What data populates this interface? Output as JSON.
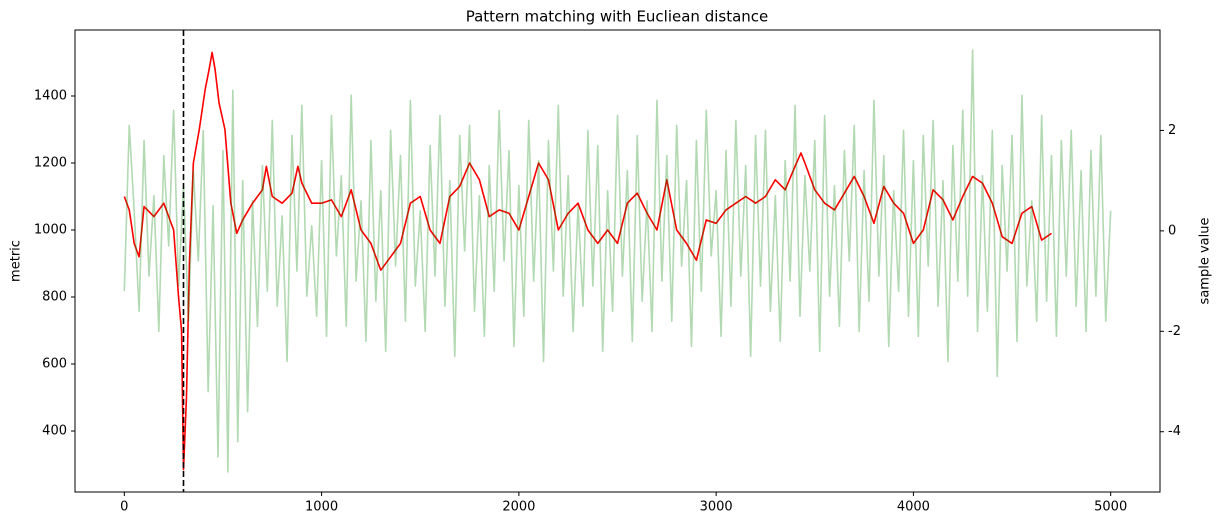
{
  "chart_data": {
    "type": "line",
    "title": "Pattern matching with Eucliean distance",
    "ylabel": "metric",
    "y2label": "sample value",
    "xlim": [
      -250,
      5250
    ],
    "xticks": [
      0,
      1000,
      2000,
      3000,
      4000,
      5000
    ],
    "ylim": [
      218,
      1597
    ],
    "yticks": [
      400,
      600,
      800,
      1000,
      1200,
      1400
    ],
    "y2lim": [
      -5.2,
      4.0
    ],
    "y2ticks": [
      -4,
      -2,
      0,
      2
    ],
    "vlines": [
      300
    ],
    "series": [
      {
        "name": "metric",
        "color": "red",
        "opacity": 1,
        "x": [
          0,
          25,
          50,
          75,
          100,
          150,
          200,
          250,
          275,
          290,
          300,
          315,
          330,
          350,
          380,
          410,
          430,
          445,
          460,
          480,
          510,
          540,
          570,
          600,
          650,
          700,
          720,
          750,
          800,
          850,
          880,
          900,
          950,
          1000,
          1050,
          1100,
          1150,
          1200,
          1250,
          1300,
          1350,
          1400,
          1450,
          1500,
          1550,
          1600,
          1650,
          1700,
          1750,
          1800,
          1850,
          1900,
          1950,
          2000,
          2050,
          2100,
          2150,
          2200,
          2250,
          2300,
          2350,
          2400,
          2450,
          2500,
          2550,
          2600,
          2650,
          2700,
          2750,
          2800,
          2850,
          2900,
          2950,
          3000,
          3050,
          3100,
          3150,
          3200,
          3250,
          3300,
          3350,
          3400,
          3430,
          3450,
          3500,
          3550,
          3600,
          3650,
          3700,
          3750,
          3800,
          3850,
          3900,
          3950,
          4000,
          4050,
          4100,
          4150,
          4200,
          4250,
          4300,
          4350,
          4400,
          4450,
          4500,
          4550,
          4600,
          4650,
          4700
        ],
        "values": [
          1100,
          1060,
          960,
          920,
          1070,
          1040,
          1080,
          1000,
          800,
          700,
          285,
          500,
          900,
          1200,
          1300,
          1420,
          1480,
          1530,
          1480,
          1380,
          1300,
          1080,
          990,
          1030,
          1080,
          1120,
          1190,
          1100,
          1080,
          1110,
          1190,
          1140,
          1080,
          1080,
          1090,
          1040,
          1120,
          1000,
          960,
          880,
          920,
          960,
          1080,
          1100,
          1000,
          960,
          1100,
          1130,
          1200,
          1150,
          1040,
          1060,
          1050,
          1000,
          1100,
          1200,
          1150,
          1000,
          1050,
          1080,
          1000,
          960,
          1000,
          960,
          1080,
          1110,
          1050,
          1000,
          1150,
          1000,
          960,
          910,
          1030,
          1020,
          1060,
          1080,
          1100,
          1080,
          1100,
          1150,
          1120,
          1190,
          1230,
          1200,
          1120,
          1080,
          1060,
          1110,
          1160,
          1100,
          1020,
          1130,
          1080,
          1050,
          960,
          1000,
          1120,
          1090,
          1030,
          1100,
          1160,
          1140,
          1080,
          980,
          960,
          1050,
          1070,
          970,
          990
        ]
      },
      {
        "name": "sample value",
        "color": "green",
        "opacity": 0.3,
        "axis": "y2",
        "x": [
          0,
          25,
          50,
          75,
          100,
          125,
          150,
          175,
          200,
          225,
          250,
          275,
          300,
          325,
          350,
          375,
          400,
          425,
          450,
          475,
          500,
          525,
          550,
          575,
          600,
          625,
          650,
          675,
          700,
          725,
          750,
          775,
          800,
          825,
          850,
          875,
          900,
          925,
          950,
          975,
          1000,
          1025,
          1050,
          1075,
          1100,
          1125,
          1150,
          1175,
          1200,
          1225,
          1250,
          1275,
          1300,
          1325,
          1350,
          1375,
          1400,
          1425,
          1450,
          1475,
          1500,
          1525,
          1550,
          1575,
          1600,
          1625,
          1650,
          1675,
          1700,
          1725,
          1750,
          1775,
          1800,
          1825,
          1850,
          1875,
          1900,
          1925,
          1950,
          1975,
          2000,
          2025,
          2050,
          2075,
          2100,
          2125,
          2150,
          2175,
          2200,
          2225,
          2250,
          2275,
          2300,
          2325,
          2350,
          2375,
          2400,
          2425,
          2450,
          2475,
          2500,
          2525,
          2550,
          2575,
          2600,
          2625,
          2650,
          2675,
          2700,
          2725,
          2750,
          2775,
          2800,
          2825,
          2850,
          2875,
          2900,
          2925,
          2950,
          2975,
          3000,
          3025,
          3050,
          3075,
          3100,
          3125,
          3150,
          3175,
          3200,
          3225,
          3250,
          3275,
          3300,
          3325,
          3350,
          3375,
          3400,
          3425,
          3450,
          3475,
          3500,
          3525,
          3550,
          3575,
          3600,
          3625,
          3650,
          3675,
          3700,
          3725,
          3750,
          3775,
          3800,
          3825,
          3850,
          3875,
          3900,
          3925,
          3950,
          3975,
          4000,
          4025,
          4050,
          4075,
          4100,
          4125,
          4150,
          4175,
          4200,
          4225,
          4250,
          4275,
          4300,
          4325,
          4350,
          4375,
          4400,
          4425,
          4450,
          4475,
          4500,
          4525,
          4550,
          4575,
          4600,
          4625,
          4650,
          4675,
          4700,
          4725,
          4750,
          4775,
          4800,
          4825,
          4850,
          4875,
          4900,
          4925,
          4950,
          4975,
          5000
        ],
        "values": [
          -1.2,
          2.1,
          0.4,
          -1.6,
          1.8,
          -0.9,
          0.7,
          -2.0,
          1.5,
          -0.3,
          2.4,
          -1.1,
          0.9,
          -1.8,
          1.2,
          -0.6,
          2.0,
          -3.2,
          0.5,
          -4.5,
          1.6,
          -4.8,
          2.8,
          -4.2,
          1.0,
          -3.6,
          0.6,
          -1.9,
          1.3,
          -1.2,
          2.2,
          -1.5,
          0.3,
          -2.6,
          1.9,
          -0.8,
          2.5,
          -1.3,
          0.1,
          -1.7,
          1.4,
          -2.1,
          2.3,
          -0.5,
          1.1,
          -1.9,
          2.7,
          -1.0,
          0.6,
          -2.2,
          1.8,
          -1.4,
          0.8,
          -2.4,
          2.0,
          -0.7,
          1.5,
          -1.8,
          2.6,
          -1.1,
          0.4,
          -2.0,
          1.7,
          -0.9,
          2.3,
          -1.5,
          1.0,
          -2.5,
          1.9,
          -0.4,
          2.1,
          -1.6,
          0.7,
          -2.1,
          1.3,
          -1.2,
          2.4,
          -0.6,
          1.6,
          -2.3,
          0.9,
          -1.7,
          2.2,
          -1.0,
          1.4,
          -2.6,
          1.8,
          -0.8,
          2.5,
          -1.3,
          1.1,
          -2.0,
          0.5,
          -1.5,
          2.0,
          -1.1,
          1.7,
          -2.4,
          0.8,
          -1.6,
          2.3,
          -0.9,
          1.2,
          -2.2,
          1.9,
          -1.4,
          0.6,
          -2.0,
          2.6,
          -1.0,
          1.5,
          -1.8,
          2.1,
          -0.7,
          1.0,
          -2.3,
          1.8,
          -1.2,
          2.4,
          -0.5,
          0.8,
          -2.1,
          1.6,
          -1.5,
          2.2,
          -0.9,
          1.3,
          -2.5,
          1.9,
          -1.1,
          2.0,
          -1.6,
          0.7,
          -2.2,
          1.4,
          -1.0,
          2.5,
          -1.7,
          1.1,
          -0.8,
          1.8,
          -2.4,
          2.3,
          -1.3,
          0.9,
          -1.9,
          1.6,
          -0.6,
          2.1,
          -2.0,
          1.2,
          -1.4,
          2.6,
          -0.9,
          1.5,
          -2.3,
          0.8,
          -1.2,
          2.0,
          -1.7,
          1.4,
          -2.1,
          1.9,
          -0.7,
          2.2,
          -1.5,
          1.0,
          -2.6,
          1.7,
          -1.0,
          2.4,
          -1.3,
          3.6,
          -2.0,
          1.1,
          -1.6,
          2.0,
          -2.9,
          1.3,
          -0.8,
          1.9,
          -2.2,
          2.7,
          -1.1,
          0.6,
          -1.8,
          2.3,
          -1.4,
          1.5,
          -2.1,
          1.8,
          -0.9,
          2.0,
          -1.5,
          1.2,
          -2.0,
          1.6,
          -1.3,
          1.9,
          -1.8,
          0.4
        ]
      }
    ]
  }
}
